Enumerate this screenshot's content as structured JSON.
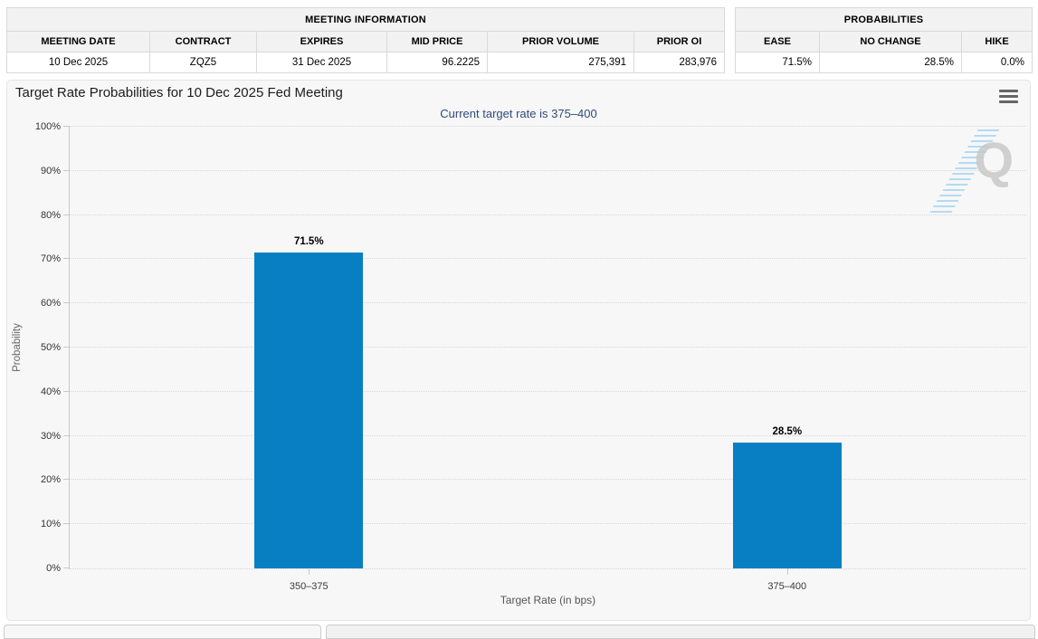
{
  "meeting_information": {
    "title": "MEETING INFORMATION",
    "columns": [
      "MEETING DATE",
      "CONTRACT",
      "EXPIRES",
      "MID PRICE",
      "PRIOR VOLUME",
      "PRIOR OI"
    ],
    "values": [
      "10 Dec 2025",
      "ZQZ5",
      "31 Dec 2025",
      "96.2225",
      "275,391",
      "283,976"
    ]
  },
  "probabilities": {
    "title": "PROBABILITIES",
    "columns": [
      "EASE",
      "NO CHANGE",
      "HIKE"
    ],
    "values": [
      "71.5%",
      "28.5%",
      "0.0%"
    ]
  },
  "chart_data": {
    "type": "bar",
    "title": "Target Rate Probabilities for 10 Dec 2025 Fed Meeting",
    "subtitle": "Current target rate is 375–400",
    "categories": [
      "350–375",
      "375–400"
    ],
    "values": [
      71.5,
      28.5
    ],
    "value_labels": [
      "71.5%",
      "28.5%"
    ],
    "xlabel": "Target Rate (in bps)",
    "ylabel": "Probability",
    "ylim": [
      0,
      100
    ],
    "yticks": [
      {
        "value": 0,
        "label": "0%"
      },
      {
        "value": 10,
        "label": "10%"
      },
      {
        "value": 20,
        "label": "20%"
      },
      {
        "value": 30,
        "label": "30%"
      },
      {
        "value": 40,
        "label": "40%"
      },
      {
        "value": 50,
        "label": "50%"
      },
      {
        "value": 60,
        "label": "60%"
      },
      {
        "value": 70,
        "label": "70%"
      },
      {
        "value": 80,
        "label": "80%"
      },
      {
        "value": 90,
        "label": "90%"
      },
      {
        "value": 100,
        "label": "100%"
      }
    ],
    "grid": "horizontal-dotted",
    "legend": "none",
    "bar_color": "#077fc2"
  },
  "watermark": {
    "letter": "Q"
  },
  "colors": {
    "bar": "#077fc2",
    "subtitle_text": "#2f4b7c",
    "panel_background": "#f7f7f7",
    "table_header_background": "#f2f2f2",
    "watermark_gray": "#c9c9c9",
    "watermark_blue": "#7dc3ee"
  }
}
